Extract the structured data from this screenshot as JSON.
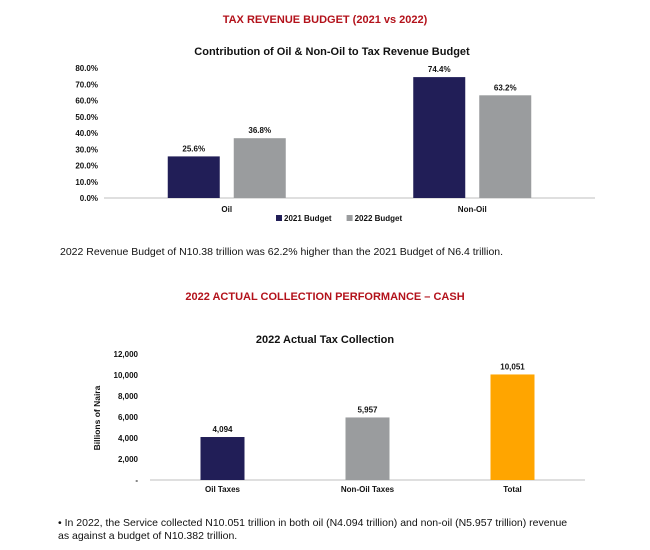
{
  "heading1": "TAX REVENUE BUDGET (2021 vs 2022)",
  "note1": "2022 Revenue Budget of N10.38 trillion was 62.2% higher than the 2021 Budget of N6.4 trillion.",
  "heading2": "2022 ACTUAL COLLECTION PERFORMANCE – CASH",
  "note2": "• In 2022, the Service collected N10.051 trillion in both oil (N4.094 trillion) and non-oil (N5.957 trillion) revenue as against a budget of N10.382 trillion.",
  "colors": {
    "budget2021": "#211e57",
    "budget2022": "#9a9c9e",
    "total": "#ffa500",
    "heading": "#b3121b"
  },
  "chart_data": [
    {
      "type": "bar",
      "title": "Contribution of Oil & Non-Oil to Tax Revenue Budget",
      "categories": [
        "Oil",
        "Non-Oil"
      ],
      "series": [
        {
          "name": "2021 Budget",
          "values": [
            25.6,
            74.4
          ],
          "labels": [
            "25.6%",
            "74.4%"
          ],
          "color": "#211e57"
        },
        {
          "name": "2022 Budget",
          "values": [
            36.8,
            63.2
          ],
          "labels": [
            "36.8%",
            "63.2%"
          ],
          "color": "#9a9c9e"
        }
      ],
      "ylim": [
        0,
        80
      ],
      "yticks": [
        "0.0%",
        "10.0%",
        "20.0%",
        "30.0%",
        "40.0%",
        "50.0%",
        "60.0%",
        "70.0%",
        "80.0%"
      ],
      "legend": "bottom",
      "grid": false
    },
    {
      "type": "bar",
      "title": "2022 Actual Tax Collection",
      "categories": [
        "Oil Taxes",
        "Non-Oil Taxes",
        "Total"
      ],
      "values": [
        4094,
        5957,
        10051
      ],
      "labels": [
        "4,094",
        "5,957",
        "10,051"
      ],
      "colors": [
        "#211e57",
        "#9a9c9e",
        "#ffa500"
      ],
      "ylabel": "Billions of Naira",
      "ylim": [
        0,
        12000
      ],
      "yticks": [
        "-",
        "2,000",
        "4,000",
        "6,000",
        "8,000",
        "10,000",
        "12,000"
      ],
      "grid": false
    }
  ]
}
